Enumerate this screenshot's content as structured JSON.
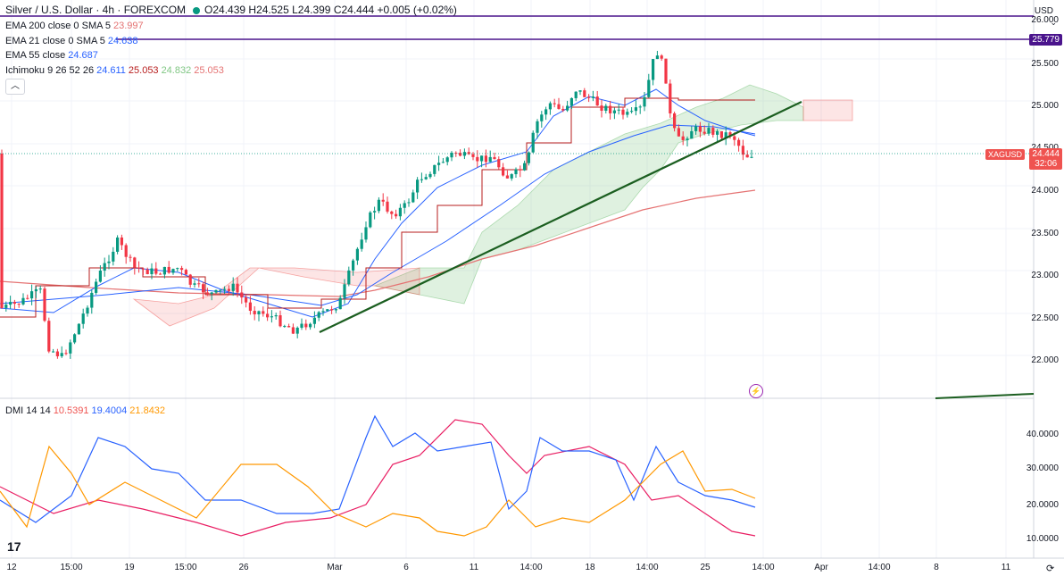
{
  "header": {
    "symbol_title": "Silver / U.S. Dollar · 4h · FOREXCOM",
    "ohlc": "O24.439 H24.525 L24.399 C24.444 +0.005 (+0.02%)"
  },
  "indicators": [
    {
      "name": "EMA 200 close 0 SMA 5",
      "value": "23.997",
      "color": "#e57373"
    },
    {
      "name": "EMA 21 close 0 SMA 5",
      "value": "24.638",
      "color": "#2962ff"
    },
    {
      "name": "EMA 55 close",
      "value": "24.687",
      "color": "#2962ff"
    },
    {
      "name": "Ichimoku 9 26 52 26",
      "values": [
        "24.611",
        "25.053",
        "24.832",
        "25.053"
      ],
      "colors": [
        "#2962ff",
        "#b71c1c",
        "#81c784",
        "#e57373"
      ]
    }
  ],
  "price_axis": {
    "currency": "USD",
    "labels": [
      "26.000",
      "25.500",
      "25.000",
      "24.500",
      "24.000",
      "23.500",
      "23.000",
      "22.500",
      "22.000"
    ],
    "resistance_tag": "25.779",
    "last_price_tag": "24.444",
    "countdown": "32:06",
    "ticker": "XAGUSD"
  },
  "dmi": {
    "legend_name": "DMI 14 14",
    "values": [
      "10.5391",
      "19.4004",
      "21.8432"
    ],
    "colors": [
      "#ef5350",
      "#2962ff",
      "#ff9800"
    ],
    "axis_labels": [
      "40.0000",
      "30.0000",
      "20.0000",
      "10.0000"
    ]
  },
  "time_axis": [
    "12",
    "15:00",
    "19",
    "15:00",
    "26",
    "Mar",
    "6",
    "11",
    "14:00",
    "18",
    "14:00",
    "25",
    "14:00",
    "Apr",
    "14:00",
    "8",
    "11"
  ],
  "colors": {
    "up": "#089981",
    "down": "#f23645",
    "trendline": "#1b5e20",
    "resistance": "#4a148c"
  }
}
